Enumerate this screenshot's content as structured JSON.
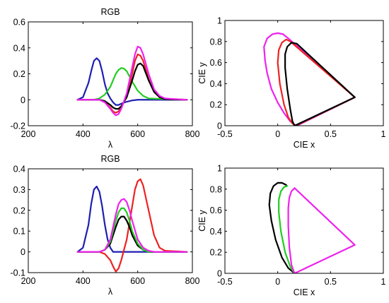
{
  "chart_data": [
    {
      "id": "rgb-top",
      "type": "line",
      "title": "RGB",
      "xlabel": "λ",
      "ylabel": "",
      "xlim": [
        200,
        800
      ],
      "ylim": [
        -0.2,
        0.6
      ],
      "xticks": [
        200,
        400,
        600,
        800
      ],
      "xtick_labels": [
        "200",
        "400",
        "600",
        "800"
      ],
      "yticks": [
        -0.2,
        0,
        0.2,
        0.4,
        0.6
      ],
      "ytick_labels": [
        "-0.2",
        "0",
        "0.2",
        "0.4",
        "0.6"
      ],
      "series": [
        {
          "color": "#1f1fb0",
          "x": [
            380,
            400,
            420,
            430,
            440,
            450,
            460,
            470,
            480,
            490,
            500,
            510,
            520,
            530,
            540,
            560,
            580,
            600,
            620,
            780
          ],
          "y": [
            0,
            0.02,
            0.13,
            0.22,
            0.3,
            0.32,
            0.3,
            0.22,
            0.12,
            0.05,
            0.01,
            -0.02,
            -0.04,
            -0.04,
            -0.03,
            -0.015,
            -0.005,
            0,
            0,
            0
          ]
        },
        {
          "color": "#22cc22",
          "x": [
            380,
            440,
            460,
            480,
            500,
            510,
            520,
            530,
            540,
            550,
            560,
            570,
            580,
            600,
            620,
            640,
            780
          ],
          "y": [
            0,
            0,
            0.01,
            0.04,
            0.1,
            0.15,
            0.2,
            0.23,
            0.245,
            0.24,
            0.22,
            0.18,
            0.14,
            0.07,
            0.03,
            0.01,
            0
          ]
        },
        {
          "color": "#ee2222",
          "x": [
            380,
            460,
            480,
            500,
            510,
            520,
            530,
            540,
            560,
            580,
            590,
            600,
            610,
            620,
            640,
            660,
            680,
            700,
            780
          ],
          "y": [
            0,
            0,
            -0.02,
            -0.06,
            -0.09,
            -0.1,
            -0.09,
            -0.06,
            0.03,
            0.2,
            0.3,
            0.35,
            0.34,
            0.3,
            0.16,
            0.06,
            0.02,
            0.005,
            0
          ]
        },
        {
          "color": "#000000",
          "x": [
            380,
            460,
            480,
            500,
            510,
            520,
            530,
            540,
            560,
            580,
            590,
            600,
            610,
            620,
            640,
            660,
            680,
            700,
            780
          ],
          "y": [
            0,
            0,
            -0.01,
            -0.04,
            -0.06,
            -0.07,
            -0.07,
            -0.05,
            0.02,
            0.15,
            0.22,
            0.27,
            0.28,
            0.26,
            0.15,
            0.06,
            0.02,
            0.005,
            0
          ]
        },
        {
          "color": "#ee22ee",
          "x": [
            380,
            460,
            480,
            500,
            510,
            520,
            530,
            540,
            560,
            580,
            590,
            600,
            610,
            620,
            640,
            660,
            680,
            700,
            780
          ],
          "y": [
            0,
            0,
            -0.02,
            -0.07,
            -0.1,
            -0.12,
            -0.11,
            -0.07,
            0.05,
            0.25,
            0.35,
            0.41,
            0.4,
            0.35,
            0.2,
            0.08,
            0.03,
            0.01,
            0
          ]
        }
      ]
    },
    {
      "id": "cie-top",
      "type": "line",
      "title": "",
      "xlabel": "CIE x",
      "ylabel": "CIE y",
      "xlim": [
        -0.5,
        1
      ],
      "ylim": [
        0,
        1
      ],
      "xticks": [
        -0.5,
        0,
        0.5,
        1
      ],
      "xtick_labels": [
        "-0.5",
        "0",
        "0.5",
        "1"
      ],
      "yticks": [
        0,
        0.2,
        0.4,
        0.6,
        0.8,
        1
      ],
      "ytick_labels": [
        "0",
        "0.2",
        "0.4",
        "0.6",
        "0.8",
        "1"
      ],
      "series": [
        {
          "color": "#ee22ee",
          "x": [
            0.73,
            0.18,
            0.16,
            0.12,
            0.06,
            0.0,
            -0.06,
            -0.1,
            -0.12,
            -0.13,
            -0.1,
            -0.05,
            0.0,
            0.05,
            0.1,
            0.73
          ],
          "y": [
            0.27,
            0.0,
            0.01,
            0.04,
            0.12,
            0.22,
            0.35,
            0.5,
            0.62,
            0.75,
            0.83,
            0.87,
            0.88,
            0.87,
            0.83,
            0.27
          ]
        },
        {
          "color": "#ee2222",
          "x": [
            0.73,
            0.17,
            0.14,
            0.1,
            0.06,
            0.02,
            0.0,
            0.01,
            0.04,
            0.08,
            0.12,
            0.73
          ],
          "y": [
            0.27,
            0.0,
            0.02,
            0.08,
            0.2,
            0.4,
            0.6,
            0.72,
            0.79,
            0.82,
            0.8,
            0.27
          ]
        },
        {
          "color": "#000000",
          "x": [
            0.73,
            0.16,
            0.14,
            0.12,
            0.09,
            0.07,
            0.07,
            0.09,
            0.13,
            0.18,
            0.73
          ],
          "y": [
            0.27,
            0.0,
            0.04,
            0.15,
            0.35,
            0.55,
            0.68,
            0.75,
            0.79,
            0.78,
            0.27
          ]
        }
      ]
    },
    {
      "id": "rgb-bottom",
      "type": "line",
      "title": "RGB",
      "xlabel": "λ",
      "ylabel": "",
      "xlim": [
        200,
        800
      ],
      "ylim": [
        -0.1,
        0.4
      ],
      "xticks": [
        200,
        400,
        600,
        800
      ],
      "xtick_labels": [
        "200",
        "400",
        "600",
        "800"
      ],
      "yticks": [
        -0.1,
        0,
        0.1,
        0.2,
        0.3,
        0.4
      ],
      "ytick_labels": [
        "-0.1",
        "0",
        "0.1",
        "0.2",
        "0.3",
        "0.4"
      ],
      "series": [
        {
          "color": "#1f1fb0",
          "x": [
            380,
            400,
            420,
            430,
            440,
            450,
            460,
            470,
            480,
            490,
            500,
            510,
            520,
            530,
            540,
            560,
            580,
            600,
            620,
            780
          ],
          "y": [
            0,
            0.02,
            0.13,
            0.23,
            0.3,
            0.315,
            0.29,
            0.22,
            0.13,
            0.06,
            0.02,
            0.0,
            0,
            0,
            0,
            0,
            0,
            0,
            0,
            0
          ]
        },
        {
          "color": "#ee2222",
          "x": [
            380,
            440,
            460,
            480,
            500,
            510,
            520,
            530,
            540,
            560,
            580,
            590,
            600,
            610,
            620,
            640,
            660,
            680,
            700,
            780
          ],
          "y": [
            0,
            0,
            0,
            -0.01,
            -0.04,
            -0.07,
            -0.095,
            -0.08,
            -0.04,
            0.06,
            0.22,
            0.3,
            0.34,
            0.35,
            0.32,
            0.2,
            0.08,
            0.02,
            0.005,
            0
          ]
        },
        {
          "color": "#000000",
          "x": [
            380,
            440,
            460,
            480,
            500,
            510,
            520,
            530,
            540,
            550,
            560,
            570,
            580,
            600,
            620,
            640,
            660,
            780
          ],
          "y": [
            0,
            0,
            0,
            0.01,
            0.04,
            0.08,
            0.12,
            0.155,
            0.17,
            0.17,
            0.15,
            0.12,
            0.08,
            0.03,
            0.01,
            0,
            0,
            0
          ]
        },
        {
          "color": "#22cc22",
          "x": [
            380,
            440,
            460,
            480,
            500,
            510,
            520,
            530,
            540,
            550,
            560,
            570,
            580,
            600,
            620,
            640,
            660,
            780
          ],
          "y": [
            0,
            0,
            0,
            0.01,
            0.05,
            0.1,
            0.15,
            0.19,
            0.21,
            0.21,
            0.19,
            0.15,
            0.1,
            0.04,
            0.01,
            0,
            0,
            0
          ]
        },
        {
          "color": "#ee22ee",
          "x": [
            380,
            440,
            460,
            480,
            500,
            510,
            520,
            530,
            540,
            550,
            560,
            570,
            580,
            600,
            620,
            640,
            660,
            780
          ],
          "y": [
            0,
            0,
            0,
            0.01,
            0.06,
            0.12,
            0.18,
            0.23,
            0.25,
            0.255,
            0.24,
            0.2,
            0.15,
            0.06,
            0.02,
            0.005,
            0,
            0
          ]
        }
      ]
    },
    {
      "id": "cie-bottom",
      "type": "line",
      "title": "",
      "xlabel": "CIE x",
      "ylabel": "CIE y",
      "xlim": [
        -0.5,
        1
      ],
      "ylim": [
        0,
        1
      ],
      "xticks": [
        -0.5,
        0,
        0.5,
        1
      ],
      "xtick_labels": [
        "-0.5",
        "0",
        "0.5",
        "1"
      ],
      "yticks": [
        0,
        0.2,
        0.4,
        0.6,
        0.8,
        1
      ],
      "ytick_labels": [
        "0",
        "0.2",
        "0.4",
        "0.6",
        "0.8",
        "1"
      ],
      "series": [
        {
          "color": "#000000",
          "x": [
            0.16,
            0.1,
            0.04,
            -0.02,
            -0.06,
            -0.08,
            -0.07,
            -0.04,
            0.0,
            0.04,
            0.08
          ],
          "y": [
            0.0,
            0.05,
            0.15,
            0.32,
            0.5,
            0.65,
            0.76,
            0.83,
            0.86,
            0.86,
            0.84
          ]
        },
        {
          "color": "#22cc22",
          "x": [
            0.16,
            0.12,
            0.07,
            0.03,
            0.01,
            0.01,
            0.03,
            0.06,
            0.09
          ],
          "y": [
            0.0,
            0.06,
            0.2,
            0.4,
            0.58,
            0.7,
            0.78,
            0.82,
            0.83
          ]
        },
        {
          "color": "#ee22ee",
          "x": [
            0.73,
            0.16,
            0.13,
            0.11,
            0.1,
            0.1,
            0.11,
            0.13,
            0.16,
            0.73
          ],
          "y": [
            0.27,
            0.0,
            0.08,
            0.25,
            0.45,
            0.62,
            0.72,
            0.78,
            0.81,
            0.27
          ]
        }
      ]
    }
  ]
}
